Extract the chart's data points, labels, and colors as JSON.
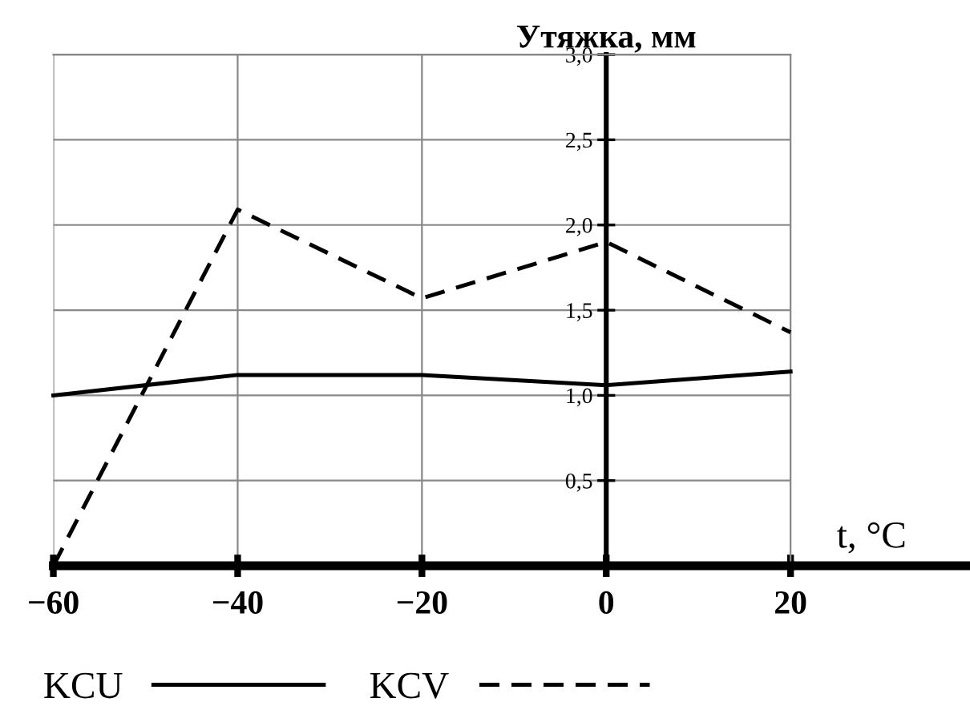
{
  "chart_data": {
    "type": "line",
    "xlabel": "t, °C",
    "ylabel": "Утяжка, мм",
    "x": [
      -60,
      -40,
      -20,
      0,
      20
    ],
    "series": [
      {
        "name": "KCU",
        "color": "#000000",
        "line_style": "solid",
        "values": [
          1.0,
          1.12,
          1.12,
          1.06,
          1.14
        ]
      },
      {
        "name": "KCV",
        "color": "#000000",
        "line_style": "dashed",
        "values": [
          0,
          2.09,
          1.57,
          1.9,
          1.37
        ]
      }
    ],
    "xlim": [
      -60,
      20
    ],
    "ylim": [
      0,
      3
    ],
    "xticks": [
      {
        "value": -60,
        "label": "−60"
      },
      {
        "value": -40,
        "label": "−40"
      },
      {
        "value": -20,
        "label": "−20"
      },
      0,
      20
    ],
    "yticks": [
      {
        "value": 0.5,
        "label": "0,5"
      },
      {
        "value": 1.0,
        "label": "1,0"
      },
      {
        "value": 1.5,
        "label": "1,5"
      },
      {
        "value": 2.0,
        "label": "2,0"
      },
      {
        "value": 2.5,
        "label": "2,5"
      },
      {
        "value": 3.0,
        "label": "3,0"
      }
    ],
    "grid": true,
    "legend": "bottom",
    "marker": "none"
  }
}
